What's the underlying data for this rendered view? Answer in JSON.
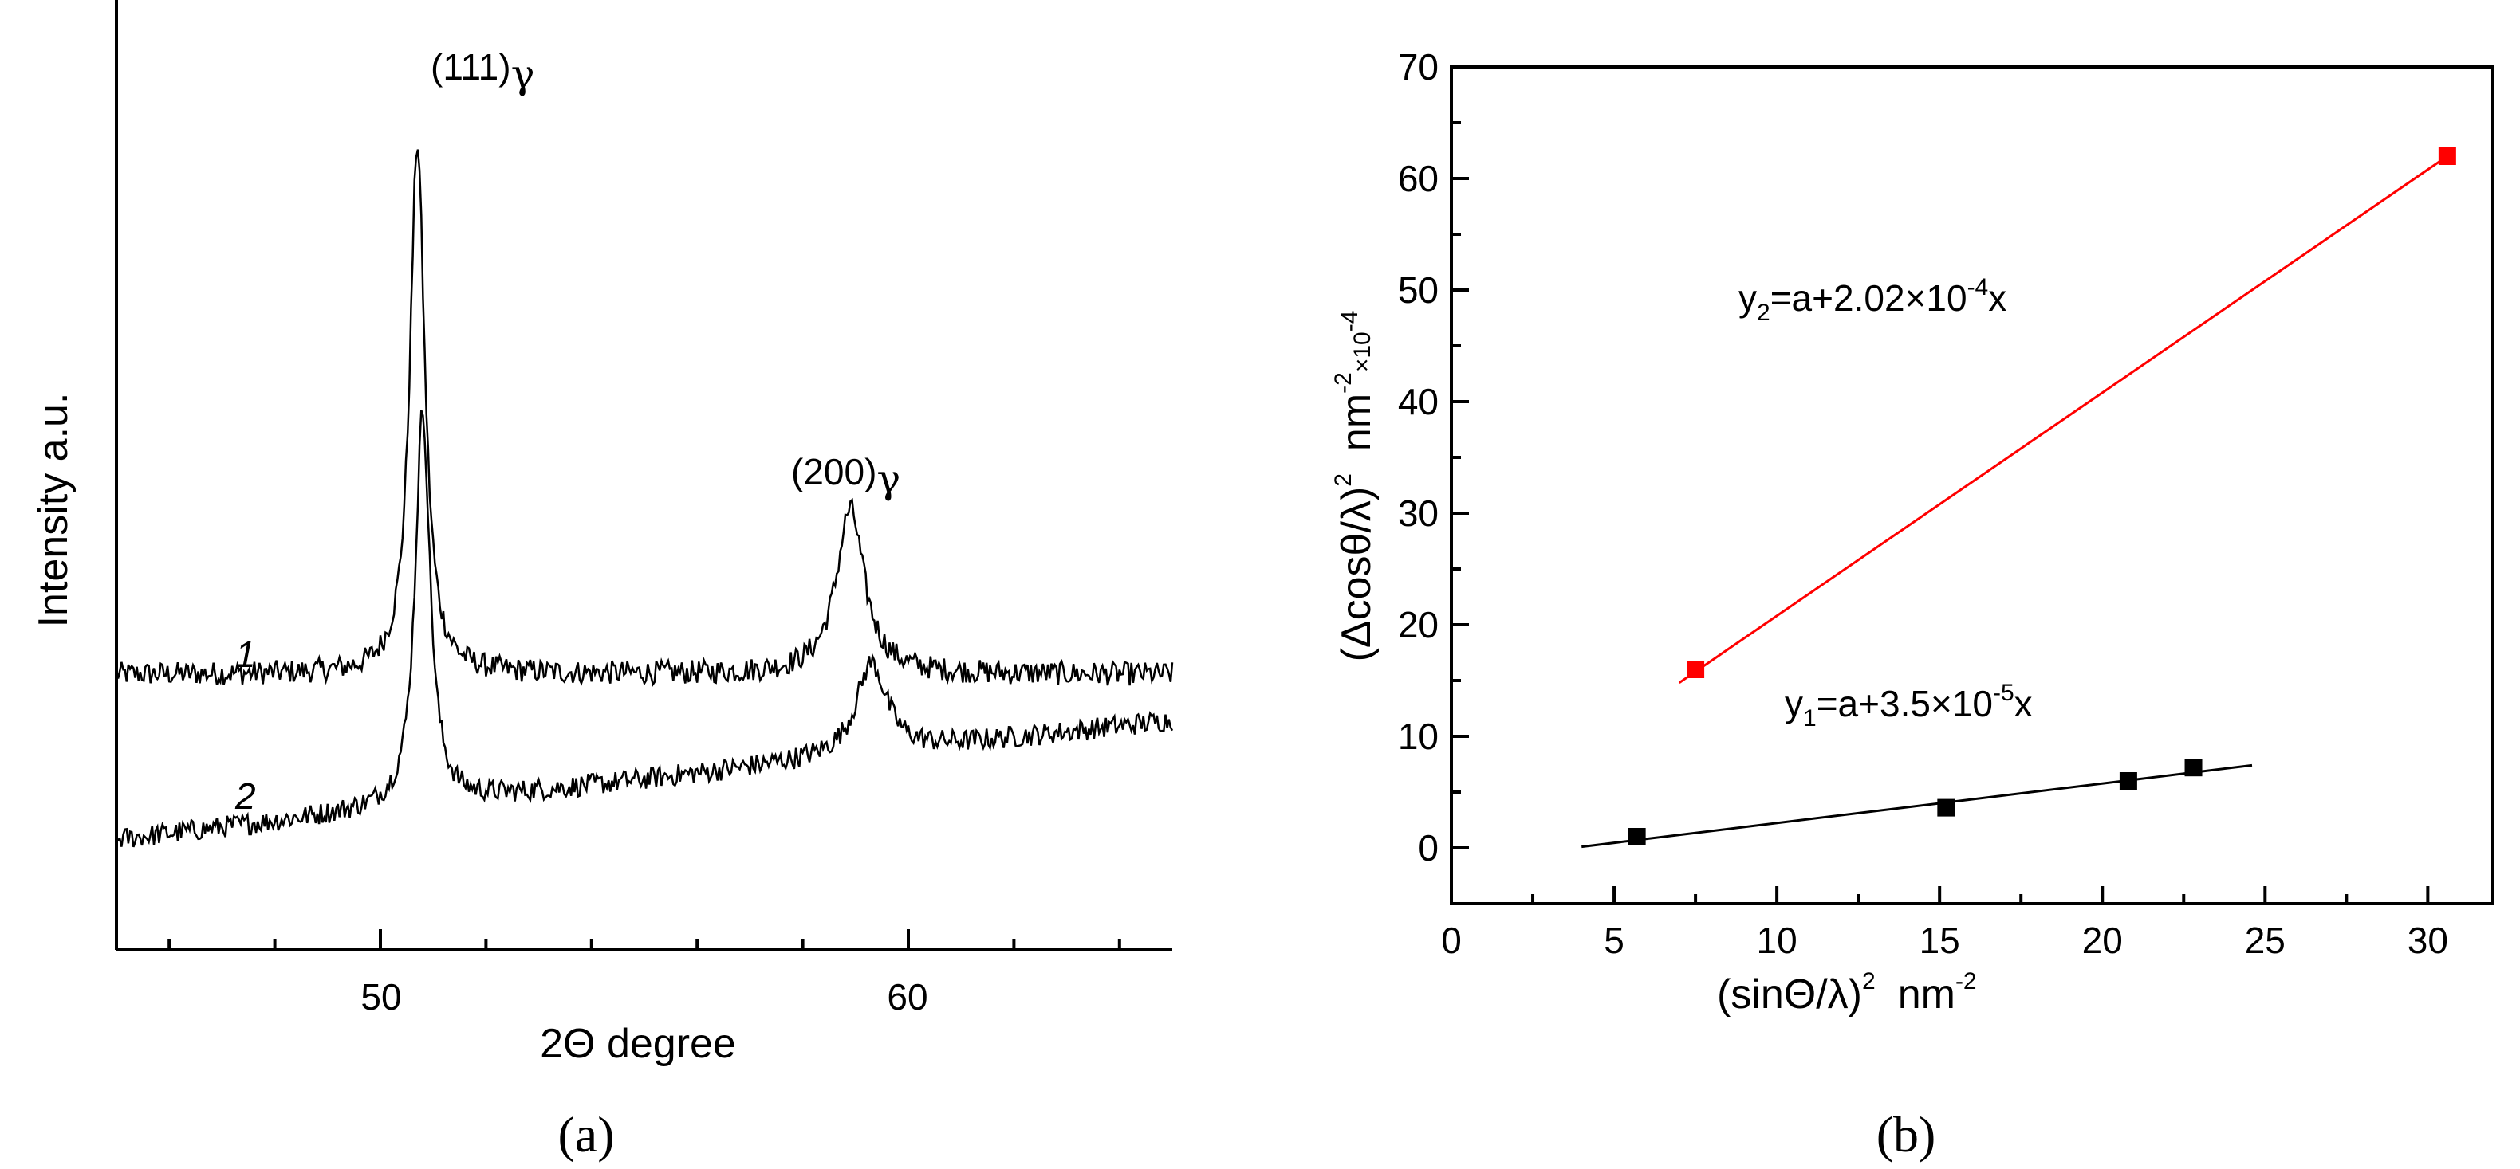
{
  "chart_data": [
    {
      "panel": "(a)",
      "type": "line",
      "xlabel": "2Θ  degree",
      "ylabel": "Intensity  a.u.",
      "xlim": [
        45,
        65
      ],
      "xticks": [
        "50",
        "60"
      ],
      "yticks": [],
      "series": [
        {
          "name": "1",
          "baseline": 0.3,
          "peaks": [
            {
              "x": 50.7,
              "height": 0.58,
              "width": 0.17
            },
            {
              "x": 58.9,
              "height": 0.18,
              "width": 0.32
            }
          ],
          "noise": 0.013
        },
        {
          "name": "2",
          "baseline": 0.12,
          "base_slope": 0.0065,
          "peaks": [
            {
              "x": 50.8,
              "height": 0.43,
              "width": 0.17
            },
            {
              "x": 59.3,
              "height": 0.1,
              "width": 0.35
            }
          ],
          "noise": 0.012
        }
      ],
      "annotations": [
        {
          "text": "(111)",
          "greek": "γ"
        },
        {
          "text": "(200)",
          "greek": "γ"
        }
      ]
    },
    {
      "panel": "(b)",
      "type": "scatter",
      "xlabel": "(sinΘ/λ)",
      "xlabel_sup": "2",
      "xlabel_unit": "nm",
      "xlabel_unit_sup": "-2",
      "ylabel": "(Δcosθ/λ)",
      "ylabel_sup": "2",
      "ylabel_unit": "nm",
      "ylabel_unit_sup": "-2",
      "ylabel_mult": "×10",
      "ylabel_mult_sup": "-4",
      "xlim": [
        0,
        32
      ],
      "ylim": [
        -5,
        70
      ],
      "xticks": [
        0,
        5,
        10,
        15,
        20,
        25,
        30
      ],
      "yticks": [
        0,
        10,
        20,
        30,
        40,
        50,
        60,
        70
      ],
      "series": [
        {
          "name": "y1",
          "color": "#000000",
          "points": [
            {
              "x": 5.7,
              "y": 1.0
            },
            {
              "x": 15.2,
              "y": 3.6
            },
            {
              "x": 20.8,
              "y": 6.0
            },
            {
              "x": 22.8,
              "y": 7.2
            }
          ],
          "fit": {
            "x0": 4.0,
            "y0": 0.1,
            "x1": 24.6,
            "y1": 7.4
          }
        },
        {
          "name": "y2",
          "color": "#ff0000",
          "points": [
            {
              "x": 7.5,
              "y": 16.0
            },
            {
              "x": 30.6,
              "y": 62.0
            }
          ],
          "fit": {
            "x0": 7.0,
            "y0": 14.8,
            "x1": 30.6,
            "y1": 62.0
          }
        }
      ],
      "equations": {
        "y1": {
          "lhs": "y",
          "sub": "1",
          "mid": "=a+3.5×10",
          "sup": "-5",
          "tail": "x"
        },
        "y2": {
          "lhs": "y",
          "sub": "2",
          "mid": "=a+2.02×10",
          "sup": "-4",
          "tail": "x"
        }
      }
    }
  ]
}
